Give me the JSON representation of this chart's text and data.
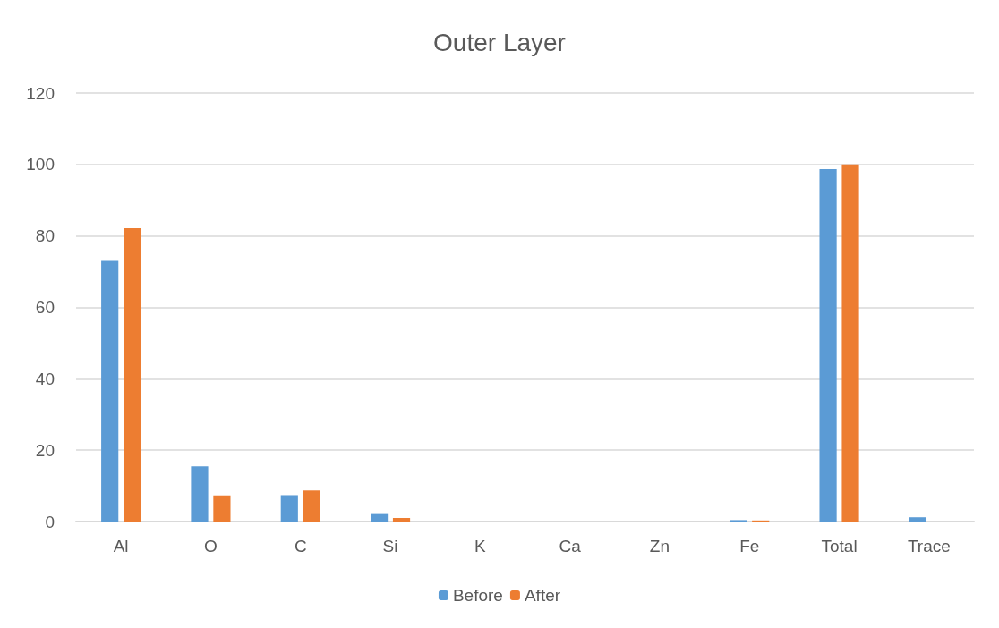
{
  "chart_data": {
    "type": "bar",
    "title": "Outer Layer",
    "categories": [
      "Al",
      "O",
      "C",
      "Si",
      "K",
      "Ca",
      "Zn",
      "Fe",
      "Total",
      "Trace"
    ],
    "series": [
      {
        "name": "Before",
        "color": "#5b9bd5",
        "values": [
          73,
          15.5,
          7.4,
          2.1,
          0,
          0,
          0,
          0.4,
          98.7,
          1.2
        ]
      },
      {
        "name": "After",
        "color": "#ed7d31",
        "values": [
          82.2,
          7.3,
          8.7,
          1,
          0,
          0,
          0,
          0.3,
          100,
          0
        ]
      }
    ],
    "ylim": [
      0,
      120
    ],
    "yticks": [
      0,
      20,
      40,
      60,
      80,
      100,
      120
    ],
    "grid": "y",
    "legend": "bottom"
  }
}
